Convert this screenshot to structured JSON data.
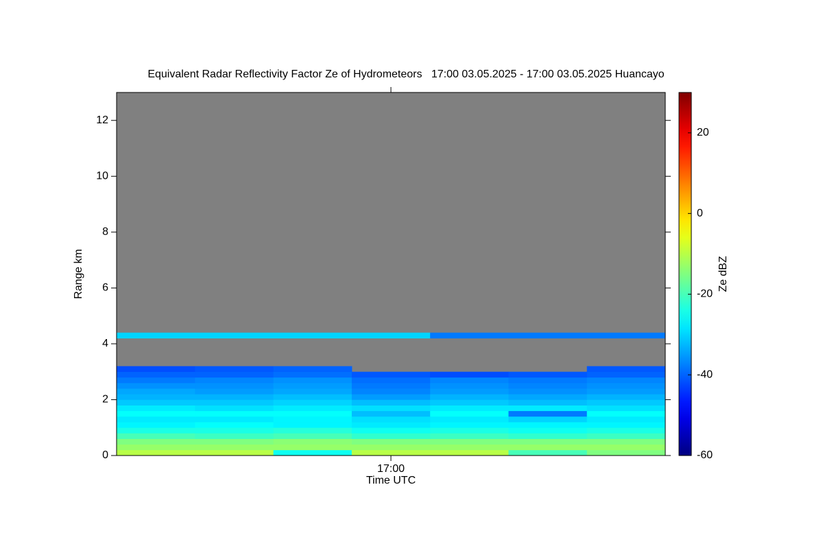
{
  "chart_data": {
    "type": "heatmap",
    "title": "Equivalent Radar Reflectivity Factor Ze of Hydrometeors   17:00 03.05.2025 - 17:00 03.05.2025 Huancayo",
    "x_label": "Time UTC",
    "y_label": "Range km",
    "colorbar_label": "Ze dBZ",
    "colormap": "jet",
    "missing_color": "#808080",
    "xlim": [
      0,
      7
    ],
    "xticks": [
      {
        "value": 3.5,
        "label": "17:00"
      }
    ],
    "ylim": [
      0,
      13
    ],
    "yticks": [
      0,
      2,
      4,
      6,
      8,
      10,
      12
    ],
    "zlim": [
      -60,
      30
    ],
    "zticks": [
      -60,
      -40,
      -20,
      0,
      20
    ],
    "y_bins": [
      0,
      0.2,
      0.4,
      0.6,
      0.8,
      1.0,
      1.2,
      1.4,
      1.6,
      1.8,
      2.0,
      2.2,
      2.4,
      2.6,
      2.8,
      3.0,
      3.2,
      3.4,
      3.6,
      3.8,
      4.0,
      4.2,
      4.4
    ],
    "z": [
      [
        -10,
        -10,
        -25,
        -10,
        -10,
        -20,
        -15
      ],
      [
        -13,
        -13,
        -13,
        -13,
        -13,
        -13,
        -13
      ],
      [
        -15,
        -15,
        -14,
        -15,
        -15,
        -15,
        -15
      ],
      [
        -20,
        -21,
        -20,
        -22,
        -21,
        -22,
        -21
      ],
      [
        -24,
        -24,
        -23,
        -25,
        -24,
        -25,
        -24
      ],
      [
        -27,
        -26,
        -27,
        -28,
        -27,
        -27,
        -27
      ],
      [
        -28,
        -28,
        -27,
        -29,
        -28,
        -30,
        -28
      ],
      [
        -26,
        -26,
        -26,
        -32,
        -26,
        -38,
        -26
      ],
      [
        -28,
        -29,
        -28,
        -29,
        -28,
        -28,
        -29
      ],
      [
        -31,
        -31,
        -30,
        -32,
        -31,
        -32,
        -31
      ],
      [
        -33,
        -33,
        -32,
        -35,
        -33,
        -34,
        -33
      ],
      [
        -34,
        -35,
        -34,
        -37,
        -35,
        -36,
        -35
      ],
      [
        -36,
        -36,
        -35,
        -38,
        -36,
        -37,
        -36
      ],
      [
        -38,
        -37,
        -36,
        -39,
        -37,
        -38,
        -37
      ],
      [
        -40,
        -40,
        -39,
        -41,
        -42,
        -41,
        -40
      ],
      [
        -42,
        -41,
        -40,
        null,
        null,
        null,
        -41
      ],
      [
        null,
        null,
        null,
        null,
        null,
        null,
        null
      ],
      [
        null,
        null,
        null,
        null,
        null,
        null,
        null
      ],
      [
        null,
        null,
        null,
        null,
        null,
        null,
        null
      ],
      [
        null,
        null,
        null,
        null,
        null,
        null,
        null
      ],
      [
        null,
        null,
        null,
        null,
        null,
        null,
        null
      ],
      [
        -30,
        -30,
        -30,
        -30,
        -38,
        -38,
        -38
      ]
    ]
  }
}
